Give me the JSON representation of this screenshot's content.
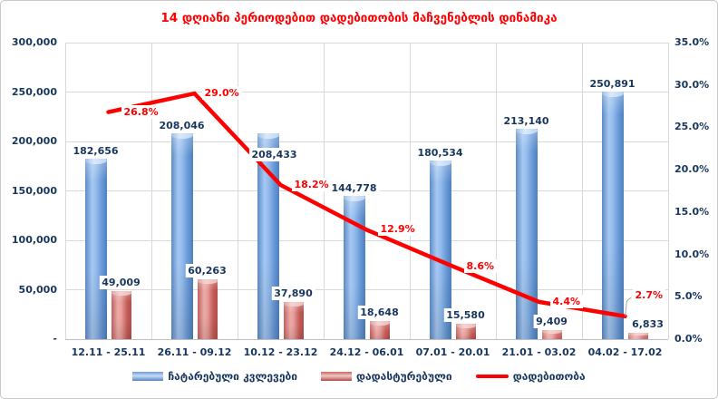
{
  "title": "14 დღიანი პერიოდებით დადებითობის მაჩვენებლის დინამიკა",
  "chart_data": {
    "type": "combo bar+line",
    "categories": [
      "12.11 - 25.11",
      "26.11 - 09.12",
      "10.12 - 23.12",
      "24.12 - 06.01",
      "07.01 - 20.01",
      "21.01 - 03.02",
      "04.02 - 17.02"
    ],
    "series": [
      {
        "name": "ჩატარებული კვლევები",
        "type": "bar",
        "axis": "left",
        "color": "#4F81BD",
        "values": [
          182656,
          208046,
          208433,
          144778,
          180534,
          213140,
          250891
        ],
        "data_labels": [
          "182,656",
          "208,046",
          "208,433",
          "144,778",
          "180,534",
          "213,140",
          "250,891"
        ]
      },
      {
        "name": "დადასტურებული",
        "type": "bar",
        "axis": "left",
        "color": "#C0504D",
        "values": [
          49009,
          60263,
          37890,
          18648,
          15580,
          9409,
          6833
        ],
        "data_labels": [
          "49,009",
          "60,263",
          "37,890",
          "18,648",
          "15,580",
          "9,409",
          "6,833"
        ]
      },
      {
        "name": "დადებითობა",
        "type": "line",
        "axis": "right",
        "color": "#FF0000",
        "values": [
          26.8,
          29.0,
          18.2,
          12.9,
          8.6,
          4.4,
          2.7
        ],
        "data_labels": [
          "26.8%",
          "29.0%",
          "18.2%",
          "12.9%",
          "8.6%",
          "4.4%",
          "2.7%"
        ]
      }
    ],
    "left_axis": {
      "min": 0,
      "max": 300000,
      "tick_labels": [
        "300,000",
        "250,000",
        "200,000",
        "150,000",
        "100,000",
        "50,000",
        "-"
      ]
    },
    "right_axis": {
      "min": 0,
      "max": 35,
      "tick_labels": [
        "35.0%",
        "30.0%",
        "25.0%",
        "20.0%",
        "15.0%",
        "10.0%",
        "5.0%",
        "0.0%"
      ]
    },
    "grid": true,
    "legend_position": "bottom",
    "colors": {
      "title": "#FF0000",
      "axis_text": "#17365D",
      "gridline": "#D9D9D9",
      "line": "#FF0000"
    }
  }
}
